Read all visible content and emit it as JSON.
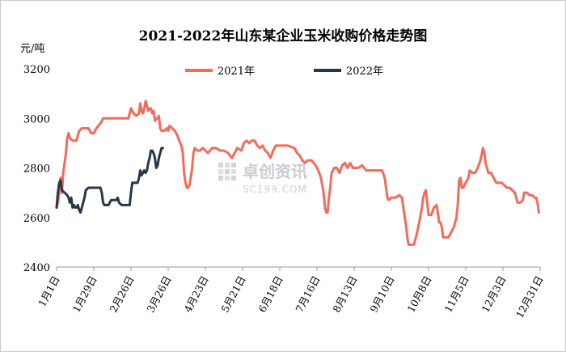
{
  "chart_data": {
    "type": "line",
    "title": "2021-2022年山东某企业玉米收购价格走势图",
    "ylabel": "元/吨",
    "ylim": [
      2400,
      3200
    ],
    "yticks": [
      2400,
      2600,
      2800,
      3000,
      3200
    ],
    "xticks": [
      "1月1日",
      "1月29日",
      "2月26日",
      "3月26日",
      "4月23日",
      "5月21日",
      "6月18日",
      "7月16日",
      "8月13日",
      "9月10日",
      "10月8日",
      "11月5日",
      "12月3日",
      "12月31日"
    ],
    "xlim_days": [
      1,
      365
    ],
    "grid": false,
    "legend_position": "top",
    "watermark": {
      "cn": "卓创资讯",
      "en": "SC199.COM"
    },
    "series": [
      {
        "name": "2021年",
        "color": "#f26b5b",
        "points": [
          [
            1,
            2640
          ],
          [
            2,
            2660
          ],
          [
            3,
            2700
          ],
          [
            4,
            2760
          ],
          [
            5,
            2700
          ],
          [
            6,
            2780
          ],
          [
            7,
            2820
          ],
          [
            8,
            2860
          ],
          [
            9,
            2920
          ],
          [
            10,
            2940
          ],
          [
            11,
            2920
          ],
          [
            13,
            2910
          ],
          [
            16,
            2910
          ],
          [
            18,
            2950
          ],
          [
            20,
            2960
          ],
          [
            22,
            2960
          ],
          [
            25,
            2960
          ],
          [
            27,
            2940
          ],
          [
            29,
            2940
          ],
          [
            31,
            2960
          ],
          [
            34,
            2980
          ],
          [
            36,
            3000
          ],
          [
            40,
            3000
          ],
          [
            45,
            3000
          ],
          [
            50,
            3000
          ],
          [
            55,
            3000
          ],
          [
            57,
            3040
          ],
          [
            59,
            3020
          ],
          [
            61,
            3010
          ],
          [
            63,
            3020
          ],
          [
            64,
            3060
          ],
          [
            65,
            3030
          ],
          [
            66,
            3020
          ],
          [
            67,
            3040
          ],
          [
            68,
            3070
          ],
          [
            70,
            3030
          ],
          [
            71,
            3040
          ],
          [
            72,
            3040
          ],
          [
            73,
            3020
          ],
          [
            74,
            3030
          ],
          [
            75,
            2990
          ],
          [
            76,
            3000
          ],
          [
            77,
            3000
          ],
          [
            78,
            3010
          ],
          [
            79,
            2960
          ],
          [
            80,
            2950
          ],
          [
            82,
            2950
          ],
          [
            84,
            2960
          ],
          [
            85,
            2950
          ],
          [
            86,
            2970
          ],
          [
            88,
            2960
          ],
          [
            90,
            2950
          ],
          [
            92,
            2930
          ],
          [
            94,
            2900
          ],
          [
            95,
            2890
          ],
          [
            96,
            2860
          ],
          [
            97,
            2780
          ],
          [
            98,
            2740
          ],
          [
            99,
            2720
          ],
          [
            100,
            2720
          ],
          [
            101,
            2730
          ],
          [
            102,
            2760
          ],
          [
            103,
            2800
          ],
          [
            104,
            2860
          ],
          [
            105,
            2880
          ],
          [
            107,
            2870
          ],
          [
            109,
            2870
          ],
          [
            111,
            2880
          ],
          [
            113,
            2870
          ],
          [
            115,
            2860
          ],
          [
            118,
            2880
          ],
          [
            121,
            2880
          ],
          [
            124,
            2870
          ],
          [
            127,
            2870
          ],
          [
            130,
            2860
          ],
          [
            133,
            2840
          ],
          [
            135,
            2860
          ],
          [
            137,
            2880
          ],
          [
            140,
            2870
          ],
          [
            142,
            2900
          ],
          [
            144,
            2910
          ],
          [
            146,
            2900
          ],
          [
            148,
            2910
          ],
          [
            150,
            2910
          ],
          [
            152,
            2890
          ],
          [
            154,
            2880
          ],
          [
            156,
            2890
          ],
          [
            158,
            2870
          ],
          [
            160,
            2860
          ],
          [
            162,
            2840
          ],
          [
            164,
            2870
          ],
          [
            166,
            2890
          ],
          [
            170,
            2890
          ],
          [
            175,
            2890
          ],
          [
            180,
            2880
          ],
          [
            182,
            2860
          ],
          [
            184,
            2850
          ],
          [
            186,
            2830
          ],
          [
            188,
            2820
          ],
          [
            190,
            2830
          ],
          [
            193,
            2830
          ],
          [
            196,
            2810
          ],
          [
            198,
            2790
          ],
          [
            200,
            2760
          ],
          [
            202,
            2700
          ],
          [
            203,
            2640
          ],
          [
            204,
            2620
          ],
          [
            205,
            2620
          ],
          [
            206,
            2680
          ],
          [
            207,
            2720
          ],
          [
            208,
            2780
          ],
          [
            210,
            2800
          ],
          [
            212,
            2800
          ],
          [
            214,
            2780
          ],
          [
            216,
            2810
          ],
          [
            218,
            2820
          ],
          [
            220,
            2800
          ],
          [
            222,
            2820
          ],
          [
            224,
            2800
          ],
          [
            226,
            2800
          ],
          [
            228,
            2800
          ],
          [
            231,
            2810
          ],
          [
            234,
            2790
          ],
          [
            237,
            2790
          ],
          [
            240,
            2790
          ],
          [
            243,
            2790
          ],
          [
            246,
            2790
          ],
          [
            248,
            2760
          ],
          [
            249,
            2720
          ],
          [
            250,
            2680
          ],
          [
            251,
            2670
          ],
          [
            253,
            2680
          ],
          [
            256,
            2680
          ],
          [
            259,
            2690
          ],
          [
            261,
            2680
          ],
          [
            262,
            2640
          ],
          [
            264,
            2570
          ],
          [
            265,
            2520
          ],
          [
            266,
            2490
          ],
          [
            268,
            2490
          ],
          [
            270,
            2490
          ],
          [
            272,
            2530
          ],
          [
            274,
            2580
          ],
          [
            276,
            2640
          ],
          [
            277,
            2680
          ],
          [
            278,
            2700
          ],
          [
            279,
            2710
          ],
          [
            280,
            2660
          ],
          [
            281,
            2610
          ],
          [
            283,
            2610
          ],
          [
            285,
            2640
          ],
          [
            287,
            2650
          ],
          [
            288,
            2620
          ],
          [
            289,
            2580
          ],
          [
            290,
            2580
          ],
          [
            291,
            2560
          ],
          [
            292,
            2520
          ],
          [
            294,
            2520
          ],
          [
            296,
            2520
          ],
          [
            298,
            2540
          ],
          [
            300,
            2560
          ],
          [
            302,
            2600
          ],
          [
            303,
            2650
          ],
          [
            304,
            2750
          ],
          [
            305,
            2760
          ],
          [
            306,
            2720
          ],
          [
            307,
            2720
          ],
          [
            309,
            2740
          ],
          [
            311,
            2760
          ],
          [
            312,
            2790
          ],
          [
            314,
            2780
          ],
          [
            316,
            2780
          ],
          [
            318,
            2800
          ],
          [
            320,
            2830
          ],
          [
            322,
            2880
          ],
          [
            323,
            2860
          ],
          [
            324,
            2820
          ],
          [
            325,
            2800
          ],
          [
            326,
            2780
          ],
          [
            328,
            2780
          ],
          [
            330,
            2760
          ],
          [
            332,
            2740
          ],
          [
            334,
            2740
          ],
          [
            336,
            2740
          ],
          [
            338,
            2730
          ],
          [
            340,
            2720
          ],
          [
            342,
            2720
          ],
          [
            344,
            2710
          ],
          [
            346,
            2700
          ],
          [
            347,
            2680
          ],
          [
            348,
            2660
          ],
          [
            350,
            2660
          ],
          [
            352,
            2670
          ],
          [
            353,
            2700
          ],
          [
            355,
            2700
          ],
          [
            357,
            2690
          ],
          [
            359,
            2690
          ],
          [
            361,
            2680
          ],
          [
            362,
            2680
          ],
          [
            363,
            2660
          ],
          [
            364,
            2620
          ]
        ]
      },
      {
        "name": "2022年",
        "color": "#253848",
        "points": [
          [
            1,
            2640
          ],
          [
            2,
            2700
          ],
          [
            3,
            2740
          ],
          [
            4,
            2750
          ],
          [
            5,
            2710
          ],
          [
            7,
            2700
          ],
          [
            9,
            2690
          ],
          [
            10,
            2680
          ],
          [
            11,
            2660
          ],
          [
            12,
            2680
          ],
          [
            13,
            2640
          ],
          [
            14,
            2650
          ],
          [
            15,
            2640
          ],
          [
            16,
            2640
          ],
          [
            17,
            2650
          ],
          [
            18,
            2630
          ],
          [
            19,
            2620
          ],
          [
            20,
            2640
          ],
          [
            22,
            2680
          ],
          [
            23,
            2710
          ],
          [
            25,
            2720
          ],
          [
            28,
            2720
          ],
          [
            31,
            2720
          ],
          [
            34,
            2720
          ],
          [
            35,
            2700
          ],
          [
            36,
            2660
          ],
          [
            37,
            2650
          ],
          [
            38,
            2650
          ],
          [
            40,
            2650
          ],
          [
            42,
            2670
          ],
          [
            44,
            2670
          ],
          [
            46,
            2670
          ],
          [
            47,
            2680
          ],
          [
            48,
            2660
          ],
          [
            50,
            2650
          ],
          [
            52,
            2650
          ],
          [
            54,
            2650
          ],
          [
            56,
            2650
          ],
          [
            57,
            2700
          ],
          [
            58,
            2740
          ],
          [
            60,
            2740
          ],
          [
            62,
            2740
          ],
          [
            63,
            2760
          ],
          [
            64,
            2790
          ],
          [
            65,
            2770
          ],
          [
            66,
            2780
          ],
          [
            67,
            2790
          ],
          [
            68,
            2780
          ],
          [
            69,
            2790
          ],
          [
            70,
            2820
          ],
          [
            71,
            2840
          ],
          [
            72,
            2870
          ],
          [
            73,
            2870
          ],
          [
            74,
            2860
          ],
          [
            75,
            2840
          ],
          [
            76,
            2800
          ],
          [
            77,
            2810
          ],
          [
            78,
            2840
          ],
          [
            79,
            2860
          ],
          [
            80,
            2880
          ],
          [
            81,
            2880
          ]
        ]
      }
    ]
  }
}
